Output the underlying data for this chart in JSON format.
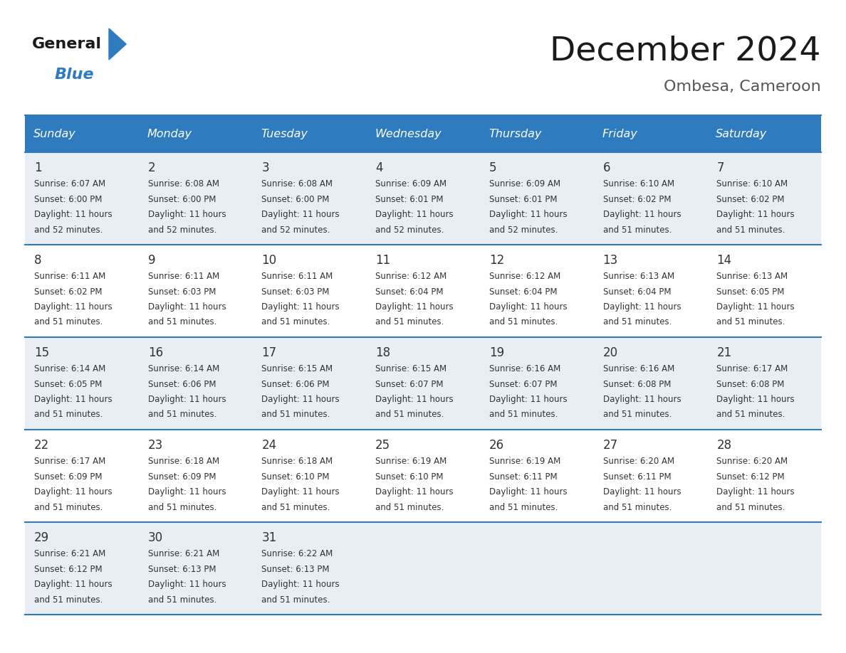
{
  "title": "December 2024",
  "subtitle": "Ombesa, Cameroon",
  "header_bg": "#2E7BBF",
  "header_text_color": "#FFFFFF",
  "days_of_week": [
    "Sunday",
    "Monday",
    "Tuesday",
    "Wednesday",
    "Thursday",
    "Friday",
    "Saturday"
  ],
  "row_bg_odd": "#E8EEF4",
  "row_bg_even": "#FFFFFF",
  "border_color": "#2E7BBF",
  "day_number_color": "#333333",
  "cell_text_color": "#333333",
  "calendar": [
    [
      {
        "day": 1,
        "sunrise": "6:07 AM",
        "sunset": "6:00 PM",
        "daylight_suffix": "52 minutes."
      },
      {
        "day": 2,
        "sunrise": "6:08 AM",
        "sunset": "6:00 PM",
        "daylight_suffix": "52 minutes."
      },
      {
        "day": 3,
        "sunrise": "6:08 AM",
        "sunset": "6:00 PM",
        "daylight_suffix": "52 minutes."
      },
      {
        "day": 4,
        "sunrise": "6:09 AM",
        "sunset": "6:01 PM",
        "daylight_suffix": "52 minutes."
      },
      {
        "day": 5,
        "sunrise": "6:09 AM",
        "sunset": "6:01 PM",
        "daylight_suffix": "52 minutes."
      },
      {
        "day": 6,
        "sunrise": "6:10 AM",
        "sunset": "6:02 PM",
        "daylight_suffix": "51 minutes."
      },
      {
        "day": 7,
        "sunrise": "6:10 AM",
        "sunset": "6:02 PM",
        "daylight_suffix": "51 minutes."
      }
    ],
    [
      {
        "day": 8,
        "sunrise": "6:11 AM",
        "sunset": "6:02 PM",
        "daylight_suffix": "51 minutes."
      },
      {
        "day": 9,
        "sunrise": "6:11 AM",
        "sunset": "6:03 PM",
        "daylight_suffix": "51 minutes."
      },
      {
        "day": 10,
        "sunrise": "6:11 AM",
        "sunset": "6:03 PM",
        "daylight_suffix": "51 minutes."
      },
      {
        "day": 11,
        "sunrise": "6:12 AM",
        "sunset": "6:04 PM",
        "daylight_suffix": "51 minutes."
      },
      {
        "day": 12,
        "sunrise": "6:12 AM",
        "sunset": "6:04 PM",
        "daylight_suffix": "51 minutes."
      },
      {
        "day": 13,
        "sunrise": "6:13 AM",
        "sunset": "6:04 PM",
        "daylight_suffix": "51 minutes."
      },
      {
        "day": 14,
        "sunrise": "6:13 AM",
        "sunset": "6:05 PM",
        "daylight_suffix": "51 minutes."
      }
    ],
    [
      {
        "day": 15,
        "sunrise": "6:14 AM",
        "sunset": "6:05 PM",
        "daylight_suffix": "51 minutes."
      },
      {
        "day": 16,
        "sunrise": "6:14 AM",
        "sunset": "6:06 PM",
        "daylight_suffix": "51 minutes."
      },
      {
        "day": 17,
        "sunrise": "6:15 AM",
        "sunset": "6:06 PM",
        "daylight_suffix": "51 minutes."
      },
      {
        "day": 18,
        "sunrise": "6:15 AM",
        "sunset": "6:07 PM",
        "daylight_suffix": "51 minutes."
      },
      {
        "day": 19,
        "sunrise": "6:16 AM",
        "sunset": "6:07 PM",
        "daylight_suffix": "51 minutes."
      },
      {
        "day": 20,
        "sunrise": "6:16 AM",
        "sunset": "6:08 PM",
        "daylight_suffix": "51 minutes."
      },
      {
        "day": 21,
        "sunrise": "6:17 AM",
        "sunset": "6:08 PM",
        "daylight_suffix": "51 minutes."
      }
    ],
    [
      {
        "day": 22,
        "sunrise": "6:17 AM",
        "sunset": "6:09 PM",
        "daylight_suffix": "51 minutes."
      },
      {
        "day": 23,
        "sunrise": "6:18 AM",
        "sunset": "6:09 PM",
        "daylight_suffix": "51 minutes."
      },
      {
        "day": 24,
        "sunrise": "6:18 AM",
        "sunset": "6:10 PM",
        "daylight_suffix": "51 minutes."
      },
      {
        "day": 25,
        "sunrise": "6:19 AM",
        "sunset": "6:10 PM",
        "daylight_suffix": "51 minutes."
      },
      {
        "day": 26,
        "sunrise": "6:19 AM",
        "sunset": "6:11 PM",
        "daylight_suffix": "51 minutes."
      },
      {
        "day": 27,
        "sunrise": "6:20 AM",
        "sunset": "6:11 PM",
        "daylight_suffix": "51 minutes."
      },
      {
        "day": 28,
        "sunrise": "6:20 AM",
        "sunset": "6:12 PM",
        "daylight_suffix": "51 minutes."
      }
    ],
    [
      {
        "day": 29,
        "sunrise": "6:21 AM",
        "sunset": "6:12 PM",
        "daylight_suffix": "51 minutes."
      },
      {
        "day": 30,
        "sunrise": "6:21 AM",
        "sunset": "6:13 PM",
        "daylight_suffix": "51 minutes."
      },
      {
        "day": 31,
        "sunrise": "6:22 AM",
        "sunset": "6:13 PM",
        "daylight_suffix": "51 minutes."
      },
      null,
      null,
      null,
      null
    ]
  ],
  "logo_color_general": "#1a1a1a",
  "logo_color_blue": "#2E7BBF",
  "logo_color_triangle": "#2E7BBF"
}
